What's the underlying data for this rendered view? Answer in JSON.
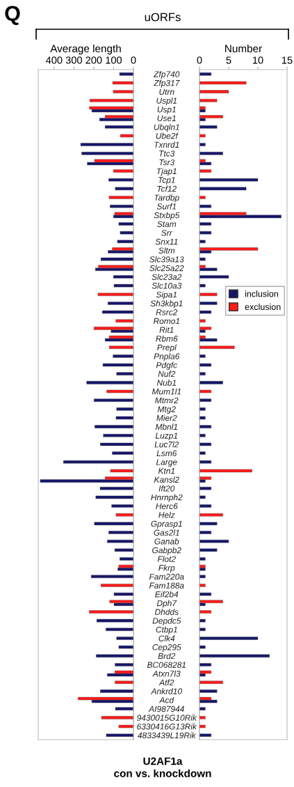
{
  "chart_data": [
    {
      "type": "bar",
      "orientation": "horizontal",
      "title": "Average length",
      "tick_labels": "x",
      "annotations": [
        "Q",
        "uORFs",
        "U2AF1a\ncon vs. knockdown"
      ],
      "categories": [
        null,
        null,
        null,
        null,
        null,
        null,
        null,
        null,
        null,
        null,
        null,
        null,
        null,
        null,
        null,
        null,
        null,
        null,
        null,
        null,
        null,
        null,
        null,
        null,
        null,
        null,
        null,
        null,
        null,
        null,
        null,
        null,
        null,
        null,
        null,
        null,
        null,
        null,
        null,
        null,
        null,
        null,
        null,
        null,
        null,
        null,
        null,
        null,
        null,
        null,
        null,
        null,
        null,
        null,
        null,
        null,
        null,
        null,
        null,
        null,
        null,
        null,
        null,
        null,
        null,
        null,
        null,
        null,
        null,
        null,
        null,
        null,
        null,
        null,
        null,
        null
      ],
      "xlim": [
        480,
        0
      ],
      "xticks": [
        400,
        300,
        200,
        100,
        0
      ],
      "series": [
        {
          "color": "#16166b",
          "values": [
            70,
            null,
            null,
            null,
            210,
            171,
            143,
            null,
            266,
            261,
            233,
            null,
            125,
            92,
            null,
            118,
            101,
            74,
            67,
            81,
            128,
            164,
            192,
            101,
            98,
            null,
            129,
            157,
            null,
            113,
            143,
            null,
            103,
            154,
            85,
            236,
            null,
            199,
            85,
            88,
            195,
            152,
            167,
            107,
            353,
            null,
            470,
            168,
            190,
            110,
            null,
            197,
            125,
            132,
            94,
            69,
            79,
            213,
            null,
            98,
            98,
            null,
            185,
            139,
            85,
            74,
            188,
            93,
            132,
            null,
            167,
            210,
            91,
            null,
            null,
            137
          ]
        },
        {
          "color": "#ff1a1a",
          "values": [
            null,
            105,
            102,
            220,
            222,
            143,
            null,
            66,
            null,
            null,
            196,
            101,
            null,
            null,
            123,
            null,
            95,
            null,
            null,
            null,
            107,
            null,
            177,
            null,
            null,
            179,
            null,
            null,
            89,
            199,
            122,
            122,
            null,
            null,
            null,
            null,
            135,
            null,
            null,
            null,
            null,
            null,
            null,
            null,
            null,
            116,
            143,
            null,
            null,
            null,
            88,
            null,
            null,
            null,
            null,
            null,
            74,
            null,
            164,
            null,
            120,
            223,
            null,
            null,
            null,
            null,
            null,
            null,
            94,
            93,
            null,
            279,
            null,
            161,
            74,
            null
          ]
        }
      ]
    },
    {
      "type": "bar",
      "orientation": "horizontal",
      "title": "Number",
      "legend": "right",
      "categories": [
        "Zfp740",
        "Zfp317",
        "Utrn",
        "Uspl1",
        "Usp1",
        "Use1",
        "Ubqln1",
        "Ube2f",
        "Txnrd1",
        "Ttc3",
        "Tsr3",
        "Tjap1",
        "Tcp1",
        "Tcf12",
        "Tardbp",
        "Surf1",
        "Stxbp5",
        "Stam",
        "Srr",
        "Snx11",
        "Sltm",
        "Slc39a13",
        "Slc25a22",
        "Slc23a2",
        "Slc10a3",
        "Sipa1",
        "Sh3kbp1",
        "Rsrc2",
        "Romo1",
        "Rit1",
        "Rbm6",
        "Prepl",
        "Pnpla6",
        "Pdgfc",
        "Nuf2",
        "Nub1",
        "Mum1l1",
        "Mtmr2",
        "Mtg2",
        "Mier2",
        "Mbnl1",
        "Luzp1",
        "Luc7l2",
        "Lsm6",
        "Large",
        "Ktn1",
        "Kansl2",
        "Ift20",
        "Hnrnph2",
        "Herc6",
        "Helz",
        "Gprasp1",
        "Gas2l1",
        "Ganab",
        "Gabpb2",
        "Flot2",
        "Fkrp",
        "Fam220a",
        "Fam188a",
        "Eif2b4",
        "Dph7",
        "Dhdds",
        "Depdc5",
        "Ctbp1",
        "Clk4",
        "Cep295",
        "Brd2",
        "BC068281",
        "Atxn7l3",
        "Atf2",
        "Ankrd10",
        "Acd",
        "AI987944",
        "9430015G10Rik",
        "6330416G13Rik",
        "4833439L19Rik"
      ],
      "xlim": [
        0,
        15
      ],
      "xticks": [
        0,
        5,
        10,
        15
      ],
      "series": [
        {
          "name": "inclusion",
          "color": "#16166b",
          "values": [
            2,
            null,
            null,
            null,
            1,
            1,
            3,
            null,
            1,
            4,
            2,
            null,
            10,
            8,
            null,
            2,
            14,
            2,
            2,
            1,
            2,
            1,
            3,
            5,
            1,
            null,
            3,
            2,
            null,
            1,
            3,
            null,
            1,
            2,
            1,
            4,
            null,
            2,
            1,
            1,
            2,
            1,
            2,
            1,
            2,
            null,
            1,
            2,
            1,
            2,
            null,
            3,
            2,
            5,
            3,
            1,
            1,
            1,
            null,
            2,
            1,
            null,
            1,
            1,
            10,
            1,
            12,
            2,
            1,
            null,
            3,
            3,
            1,
            null,
            null,
            2
          ]
        },
        {
          "name": "exclusion",
          "color": "#ff1a1a",
          "values": [
            null,
            8,
            5,
            3,
            1,
            4,
            null,
            1,
            null,
            null,
            1,
            2,
            null,
            null,
            1,
            null,
            8,
            null,
            null,
            null,
            10,
            null,
            1,
            null,
            null,
            3,
            null,
            null,
            1,
            2,
            1,
            6,
            null,
            null,
            null,
            null,
            2,
            null,
            null,
            null,
            null,
            null,
            null,
            null,
            null,
            9,
            2,
            null,
            null,
            null,
            4,
            null,
            null,
            null,
            null,
            null,
            1,
            null,
            1,
            null,
            4,
            2,
            null,
            null,
            null,
            null,
            null,
            null,
            2,
            4,
            null,
            2,
            null,
            1,
            1,
            null
          ]
        }
      ]
    }
  ]
}
